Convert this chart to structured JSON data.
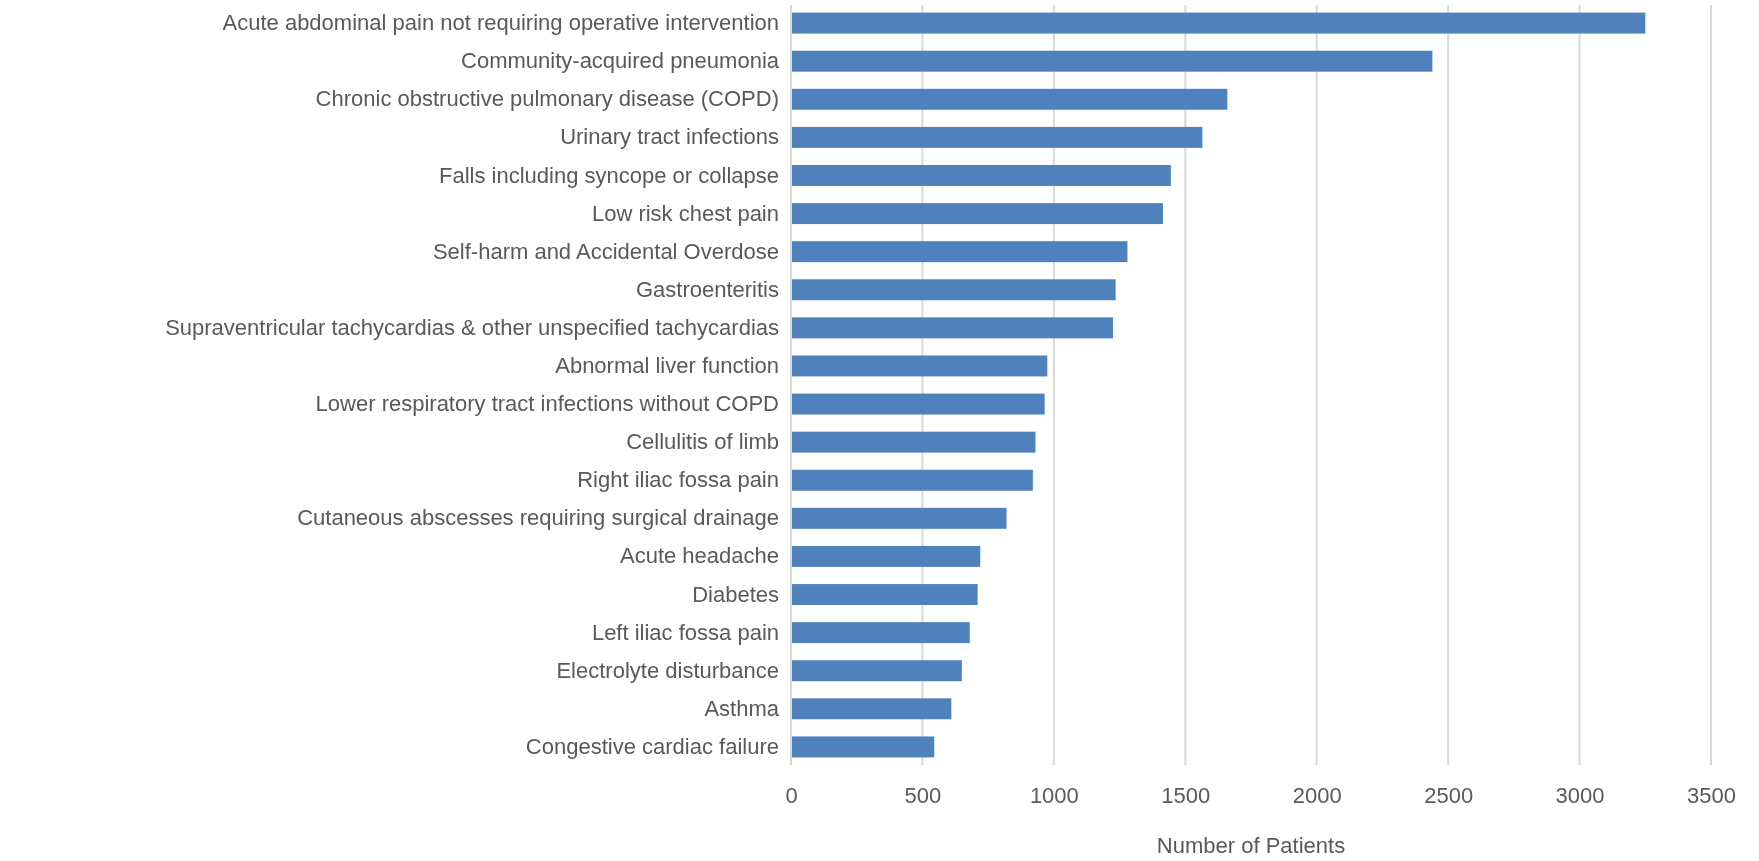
{
  "chart_data": {
    "type": "bar",
    "orientation": "horizontal",
    "xlabel": "Number of Patients",
    "categories": [
      "Acute abdominal pain not requiring operative intervention",
      "Community-acquired pneumonia",
      "Chronic obstructive pulmonary disease (COPD)",
      "Urinary tract infections",
      "Falls including syncope or collapse",
      "Low risk chest pain",
      "Self-harm and Accidental Overdose",
      "Gastroenteritis",
      "Supraventricular tachycardias & other unspecified tachycardias",
      "Abnormal liver function",
      "Lower respiratory tract infections without COPD",
      "Cellulitis of limb",
      "Right iliac fossa pain",
      "Cutaneous abscesses requiring surgical drainage",
      "Acute headache",
      "Diabetes",
      "Left iliac fossa pain",
      "Electrolyte disturbance",
      "Asthma",
      "Congestive cardiac failure"
    ],
    "values": [
      3250,
      2440,
      1660,
      1565,
      1445,
      1415,
      1280,
      1235,
      1225,
      975,
      965,
      930,
      920,
      820,
      720,
      710,
      680,
      650,
      610,
      545
    ],
    "color": "#4f81bd",
    "xlim": [
      0,
      3500
    ],
    "xticks": [
      0,
      500,
      1000,
      1500,
      2000,
      2500,
      3000,
      3500
    ],
    "grid": "x"
  }
}
